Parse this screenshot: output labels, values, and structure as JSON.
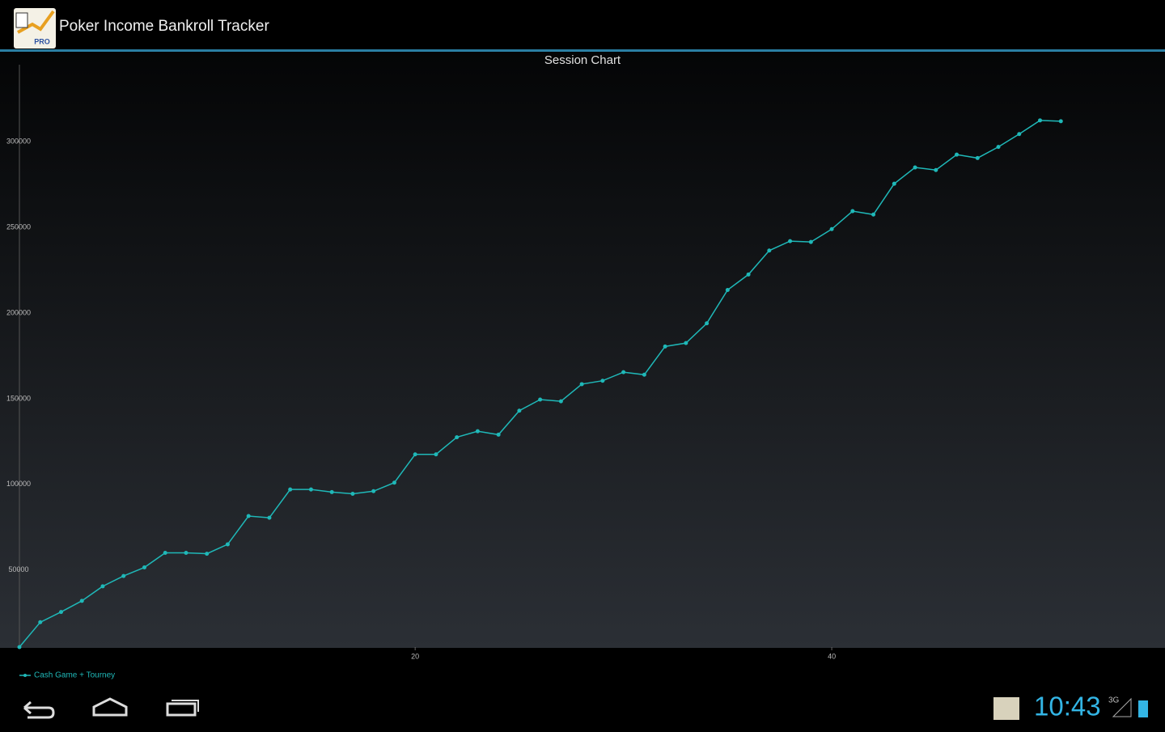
{
  "app": {
    "title": "Poker Income Bankroll Tracker",
    "icon_label": "PRO"
  },
  "status": {
    "time": "10:43",
    "network": "3G"
  },
  "chart_data": {
    "type": "line",
    "title": "Session Chart",
    "x": [
      1,
      2,
      3,
      4,
      5,
      6,
      7,
      8,
      9,
      10,
      11,
      12,
      13,
      14,
      15,
      16,
      17,
      18,
      19,
      20,
      21,
      22,
      23,
      24,
      25,
      26,
      27,
      28,
      29,
      30,
      31,
      32,
      33,
      34,
      35,
      36,
      37,
      38,
      39,
      40,
      41,
      42,
      43,
      44,
      45,
      46,
      47,
      48,
      49,
      50,
      51
    ],
    "series": [
      {
        "name": "Cash Game + Tourney",
        "color": "#1fb8b8",
        "values": [
          5000,
          19500,
          25500,
          32000,
          40500,
          46500,
          51500,
          60000,
          60000,
          59500,
          65000,
          81500,
          80500,
          97000,
          97000,
          95500,
          94500,
          96000,
          101000,
          117500,
          117500,
          127500,
          131000,
          129000,
          143000,
          149500,
          148500,
          158500,
          160500,
          165500,
          164000,
          180500,
          182500,
          194000,
          213500,
          222500,
          236500,
          242000,
          241500,
          249000,
          259500,
          257500,
          275500,
          285000,
          283500,
          292500,
          290500,
          297000,
          304500,
          312500,
          312000
        ]
      }
    ],
    "xlim": [
      1,
      56
    ],
    "xticks": [
      20,
      40
    ],
    "ylim": [
      5000,
      345000
    ],
    "yticks": [
      50000,
      100000,
      150000,
      200000,
      250000,
      300000
    ]
  }
}
